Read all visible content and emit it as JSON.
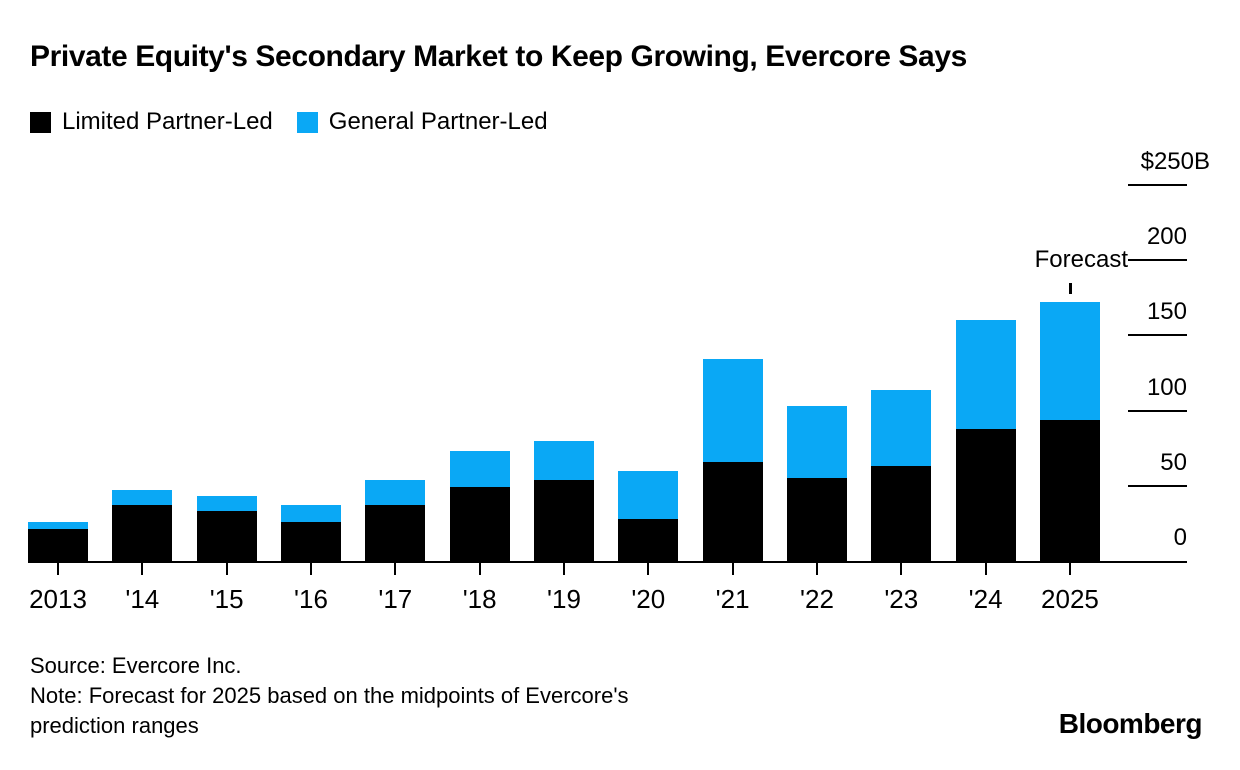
{
  "title": "Private Equity's Secondary Market to Keep Growing, Evercore Says",
  "footer": {
    "source": "Source: Evercore Inc.",
    "note_line1": "Note: Forecast for 2025 based on the midpoints of Evercore's",
    "note_line2": "prediction ranges",
    "logo": "Bloomberg"
  },
  "chart_data": {
    "type": "bar",
    "stacked": true,
    "unit": "billions USD",
    "title": "Private Equity's Secondary Market to Keep Growing, Evercore Says",
    "categories": [
      "2013",
      "'14",
      "'15",
      "'16",
      "'17",
      "'18",
      "'19",
      "'20",
      "'21",
      "'22",
      "'23",
      "'24",
      "2025"
    ],
    "series": [
      {
        "name": "Limited Partner-Led",
        "color": "#000000",
        "values": [
          21,
          37,
          33,
          26,
          37,
          49,
          54,
          28,
          66,
          55,
          63,
          88,
          94
        ]
      },
      {
        "name": "General Partner-Led",
        "color": "#0AA8F5",
        "values": [
          5,
          10,
          10,
          11,
          17,
          24,
          26,
          32,
          68,
          48,
          51,
          72,
          78
        ]
      }
    ],
    "totals": [
      26,
      47,
      43,
      37,
      54,
      73,
      80,
      60,
      134,
      103,
      114,
      160,
      172
    ],
    "y_axis": {
      "side": "right",
      "ylim": [
        0,
        250
      ],
      "ticks": [
        {
          "label": "$250B",
          "value": 250
        },
        {
          "label": "200",
          "value": 200
        },
        {
          "label": "150",
          "value": 150
        },
        {
          "label": "100",
          "value": 100
        },
        {
          "label": "50",
          "value": 50
        },
        {
          "label": "0",
          "value": 0
        }
      ]
    },
    "annotations": [
      {
        "text": "Forecast",
        "category": "2025"
      }
    ],
    "legend_position": "top-left",
    "grid": false
  }
}
